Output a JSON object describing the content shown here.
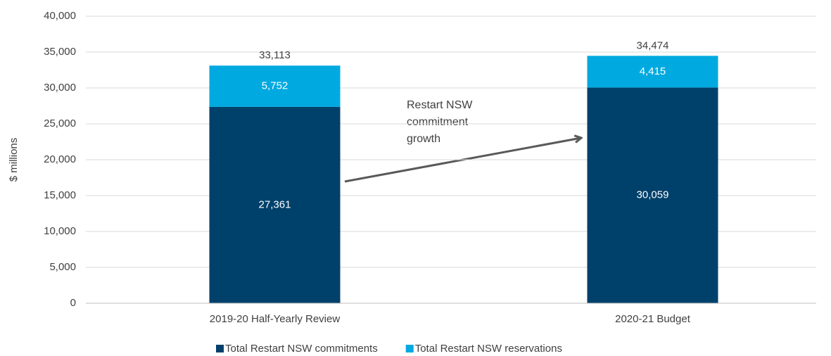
{
  "chart_data": {
    "type": "stacked_bar",
    "y_axis_label": "$ millions",
    "categories": [
      "2019-20 Half-Yearly Review",
      "2020-21 Budget"
    ],
    "series": [
      {
        "name": "Total Restart NSW commitments",
        "color": "#00416b",
        "values": [
          27361,
          30059
        ],
        "value_labels": [
          "27,361",
          "30,059"
        ]
      },
      {
        "name": "Total Restart NSW reservations",
        "color": "#00a9e0",
        "values": [
          5752,
          4415
        ],
        "value_labels": [
          "5,752",
          "4,415"
        ]
      }
    ],
    "totals": [
      33113,
      34474
    ],
    "total_labels": [
      "33,113",
      "34,474"
    ],
    "annotation": [
      "Restart NSW",
      "commitment",
      "growth"
    ],
    "ylim": [
      0,
      40000
    ],
    "yticks": [
      0,
      {
        "value": 5000,
        "label": "5,000"
      },
      {
        "value": 10000,
        "label": "10,000"
      },
      {
        "value": 15000,
        "label": "15,000"
      },
      {
        "value": 20000,
        "label": "20,000"
      },
      {
        "value": 25000,
        "label": "25,000"
      },
      {
        "value": 30000,
        "label": "30,000"
      },
      {
        "value": 35000,
        "label": "35,000"
      },
      {
        "value": 40000,
        "label": "40,000"
      }
    ],
    "grid": true,
    "legend": "bottom"
  }
}
